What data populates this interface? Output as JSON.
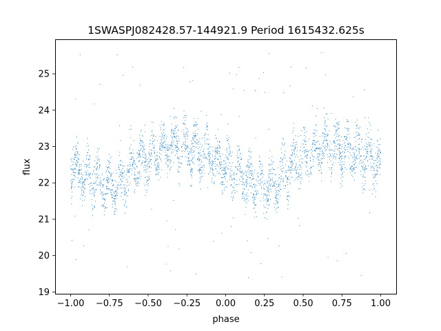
{
  "chart_data": {
    "type": "scatter",
    "title": "1SWASPJ082428.57-144921.9 Period 1615432.625s",
    "xlabel": "phase",
    "ylabel": "flux",
    "xlim": [
      -1.1,
      1.1
    ],
    "ylim": [
      18.95,
      25.95
    ],
    "xticks": [
      -1.0,
      -0.75,
      -0.5,
      -0.25,
      0.0,
      0.25,
      0.5,
      0.75,
      1.0
    ],
    "xtick_labels": [
      "−1.00",
      "−0.75",
      "−0.50",
      "−0.25",
      "0.00",
      "0.25",
      "0.50",
      "0.75",
      "1.00"
    ],
    "yticks": [
      19,
      20,
      21,
      22,
      23,
      24,
      25
    ],
    "ytick_labels": [
      "19",
      "20",
      "21",
      "22",
      "23",
      "24",
      "25"
    ],
    "grid": false,
    "legend": "none",
    "marker_color": "#1f77b4",
    "series": [
      {
        "phase": [
          -1.0,
          -0.95,
          -0.9,
          -0.85,
          -0.8,
          -0.75,
          -0.7,
          -0.65,
          -0.6,
          -0.55,
          -0.5,
          -0.45,
          -0.4,
          -0.35,
          -0.3,
          -0.25,
          -0.2,
          -0.15,
          -0.1,
          -0.05,
          0.0,
          0.05,
          0.1,
          0.15,
          0.2,
          0.25,
          0.3,
          0.35,
          0.4,
          0.45,
          0.5,
          0.55,
          0.6,
          0.65,
          0.7,
          0.75,
          0.8,
          0.85,
          0.9,
          0.95,
          1.0
        ],
        "mean_flux": [
          22.5,
          22.3,
          22.2,
          22.1,
          22.0,
          21.9,
          21.9,
          22.1,
          22.4,
          22.6,
          22.7,
          22.8,
          22.9,
          23.0,
          23.0,
          23.0,
          22.9,
          22.8,
          22.7,
          22.6,
          22.5,
          22.3,
          22.2,
          22.1,
          22.0,
          21.9,
          21.9,
          22.1,
          22.4,
          22.6,
          22.7,
          22.8,
          22.9,
          23.0,
          23.0,
          23.0,
          22.9,
          22.8,
          22.7,
          22.6,
          22.5
        ],
        "spread": 0.55,
        "outlier_range": [
          19.3,
          25.6
        ]
      }
    ]
  }
}
